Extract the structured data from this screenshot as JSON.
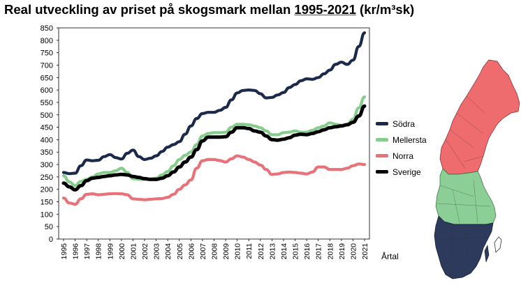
{
  "title": {
    "prefix": "Real utveckling av priset på skogsmark mellan ",
    "years": "1995-2021",
    "suffix": " (kr/m³sk)"
  },
  "chart_data": {
    "type": "line",
    "title": "Real utveckling av priset på skogsmark mellan 1995-2021 (kr/m³sk)",
    "xlabel": "Årtal",
    "ylabel": "",
    "ylim": [
      0,
      850
    ],
    "yticks": [
      0,
      50,
      100,
      150,
      200,
      250,
      300,
      350,
      400,
      450,
      500,
      550,
      600,
      650,
      700,
      750,
      800,
      850
    ],
    "x": [
      1995,
      1995.5,
      1996,
      1996.5,
      1997,
      1997.5,
      1998,
      1998.5,
      1999,
      1999.5,
      2000,
      2000.5,
      2001,
      2001.5,
      2002,
      2002.5,
      2003,
      2003.5,
      2004,
      2004.5,
      2005,
      2005.5,
      2006,
      2006.5,
      2007,
      2007.5,
      2008,
      2008.5,
      2009,
      2009.5,
      2010,
      2010.5,
      2011,
      2011.5,
      2012,
      2012.5,
      2013,
      2013.5,
      2014,
      2014.5,
      2015,
      2015.5,
      2016,
      2016.5,
      2017,
      2017.5,
      2018,
      2018.5,
      2019,
      2019.5,
      2020,
      2020.5,
      2021
    ],
    "x_tick_labels": [
      "1995",
      "1996",
      "1997",
      "1998",
      "1999",
      "2000",
      "2001",
      "2002",
      "2003",
      "2004",
      "2005",
      "2006",
      "2007",
      "2008",
      "2009",
      "2010",
      "2011",
      "2012",
      "2013",
      "2014",
      "2015",
      "2016",
      "2017",
      "2018",
      "2019",
      "2020",
      "2021"
    ],
    "series": [
      {
        "name": "Södra",
        "color": "#1b2a4a",
        "values": [
          268,
          263,
          265,
          295,
          318,
          315,
          317,
          332,
          340,
          328,
          322,
          345,
          358,
          332,
          320,
          325,
          335,
          352,
          370,
          380,
          392,
          422,
          455,
          485,
          505,
          510,
          510,
          518,
          530,
          560,
          588,
          598,
          600,
          598,
          585,
          568,
          570,
          580,
          590,
          610,
          622,
          637,
          645,
          643,
          650,
          665,
          680,
          703,
          712,
          703,
          720,
          775,
          830
        ]
      },
      {
        "name": "Mellersta",
        "color": "#86cc8c",
        "values": [
          255,
          230,
          215,
          232,
          240,
          250,
          262,
          268,
          268,
          275,
          285,
          268,
          243,
          240,
          240,
          242,
          245,
          258,
          272,
          295,
          320,
          337,
          350,
          380,
          415,
          425,
          428,
          428,
          430,
          450,
          462,
          462,
          460,
          455,
          448,
          435,
          420,
          420,
          428,
          430,
          435,
          430,
          430,
          438,
          448,
          455,
          468,
          462,
          458,
          462,
          482,
          528,
          572
        ]
      },
      {
        "name": "Norra",
        "color": "#e8727a",
        "values": [
          165,
          145,
          140,
          162,
          180,
          182,
          178,
          180,
          182,
          183,
          182,
          178,
          162,
          160,
          158,
          160,
          162,
          163,
          168,
          180,
          200,
          218,
          238,
          285,
          315,
          320,
          320,
          316,
          310,
          323,
          335,
          330,
          320,
          310,
          298,
          280,
          260,
          262,
          268,
          270,
          268,
          265,
          262,
          270,
          290,
          290,
          280,
          280,
          280,
          285,
          295,
          302,
          300
        ]
      },
      {
        "name": "Sverige",
        "color": "#000000",
        "values": [
          225,
          210,
          198,
          215,
          235,
          245,
          248,
          252,
          255,
          258,
          260,
          258,
          252,
          248,
          243,
          240,
          240,
          245,
          255,
          270,
          290,
          310,
          330,
          360,
          395,
          410,
          410,
          410,
          412,
          430,
          448,
          448,
          445,
          435,
          430,
          415,
          400,
          398,
          402,
          408,
          418,
          422,
          420,
          425,
          432,
          440,
          448,
          452,
          455,
          460,
          470,
          495,
          535
        ]
      }
    ],
    "legend_position": "right",
    "grid": false
  },
  "map": {
    "regions": [
      {
        "name": "Norra",
        "color": "#ee6b6e"
      },
      {
        "name": "Mellersta",
        "color": "#8bcf97"
      },
      {
        "name": "Södra",
        "color": "#2d3a5c"
      }
    ]
  }
}
